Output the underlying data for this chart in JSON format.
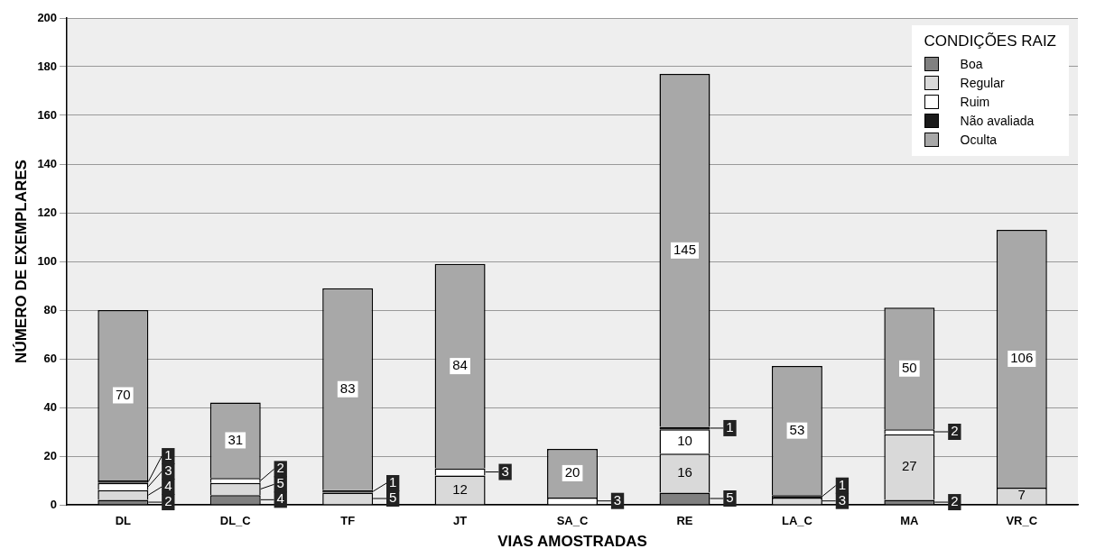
{
  "chart_data": {
    "type": "bar",
    "stacked": true,
    "xlabel": "VIAS AMOSTRADAS",
    "ylabel": "NÚMERO DE EXEMPLARES",
    "legend_title": "CONDIÇÕES RAIZ",
    "legend": "top right",
    "grid": "y",
    "data_labels": true,
    "categories": [
      "DL",
      "DL_C",
      "TF",
      "JT",
      "SA_C",
      "RE",
      "LA_C",
      "MA",
      "VR_C"
    ],
    "ylim": [
      0,
      200
    ],
    "yticks": [
      0,
      20,
      40,
      60,
      80,
      100,
      120,
      140,
      160,
      180,
      200
    ],
    "series": [
      {
        "name": "Boa",
        "color": "#808080",
        "values": [
          2,
          4,
          null,
          null,
          null,
          5,
          null,
          2,
          null
        ]
      },
      {
        "name": "Regular",
        "color": "#d9d9d9",
        "values": [
          4,
          5,
          5,
          12,
          null,
          16,
          3,
          27,
          7
        ]
      },
      {
        "name": "Ruim",
        "color": "#ffffff",
        "values": [
          3,
          2,
          null,
          3,
          3,
          10,
          null,
          2,
          null
        ]
      },
      {
        "name": "Não avaliada",
        "color": "#1a1a1a",
        "values": [
          1,
          null,
          1,
          null,
          null,
          1,
          1,
          null,
          null
        ]
      },
      {
        "name": "Oculta",
        "color": "#a8a8a8",
        "values": [
          70,
          31,
          83,
          84,
          20,
          145,
          53,
          50,
          106
        ]
      }
    ]
  }
}
